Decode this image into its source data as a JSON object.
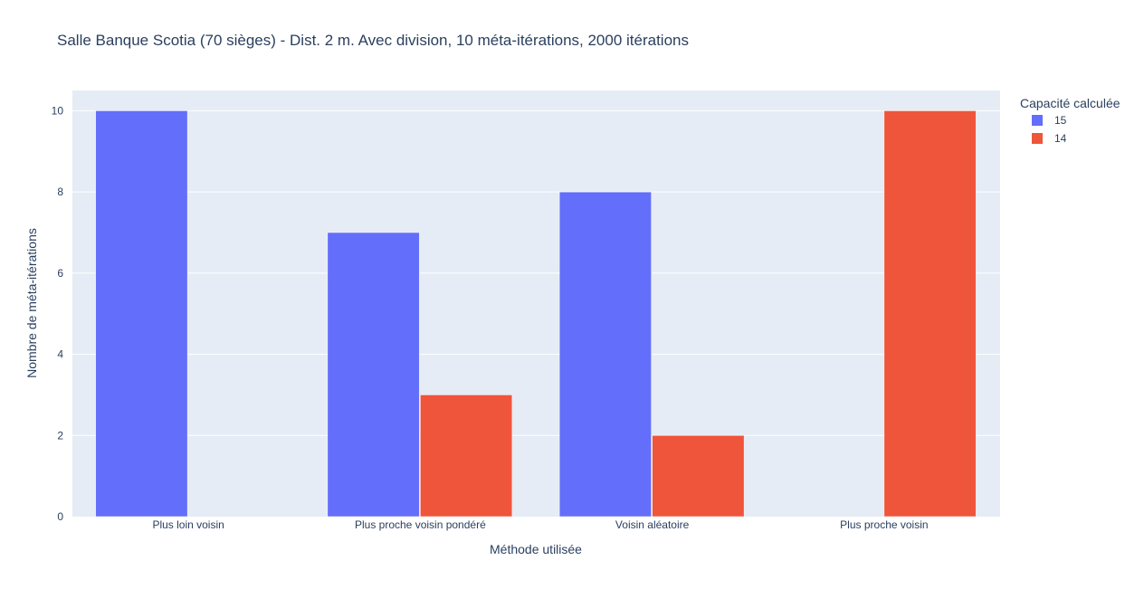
{
  "chart_data": {
    "type": "bar",
    "title": "Salle Banque Scotia (70 sièges) - Dist. 2 m. Avec division, 10 méta-itérations, 2000 itérations",
    "xlabel": "Méthode utilisée",
    "ylabel": "Nombre de méta-itérations",
    "categories": [
      "Plus loin voisin",
      "Plus proche voisin pondéré",
      "Voisin aléatoire",
      "Plus proche voisin"
    ],
    "series": [
      {
        "name": "15",
        "values": [
          10,
          7,
          8,
          0
        ],
        "color": "#636efa"
      },
      {
        "name": "14",
        "values": [
          0,
          3,
          2,
          10
        ],
        "color": "#ef553b"
      }
    ],
    "ylim": [
      0,
      10.5
    ],
    "yticks": [
      0,
      2,
      4,
      6,
      8,
      10
    ],
    "grid": true,
    "legend": {
      "title": "Capacité calculée",
      "position": "top-right"
    },
    "colors": {
      "plot_bg": "#e5ecf6",
      "grid": "#ffffff",
      "text": "#2a3f5f"
    }
  }
}
